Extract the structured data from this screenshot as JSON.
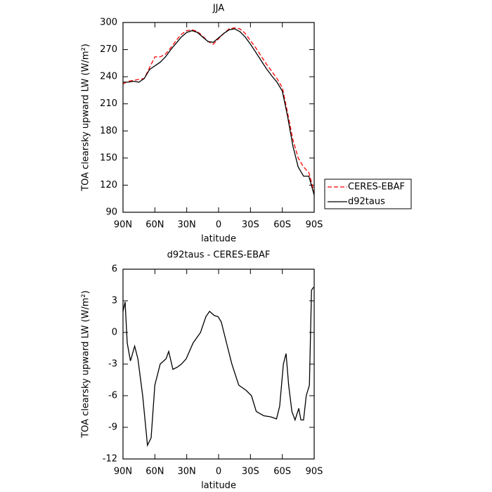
{
  "chart_data": [
    {
      "type": "line",
      "title": "JJA",
      "xlabel": "latitude",
      "ylabel": "TOA clearsky upward LW (W/m²)",
      "xlim": [
        90,
        -90
      ],
      "ylim": [
        90,
        300
      ],
      "xticks": [
        {
          "value": 90,
          "label": "90N"
        },
        {
          "value": 60,
          "label": "60N"
        },
        {
          "value": 30,
          "label": "30N"
        },
        0,
        {
          "value": -30,
          "label": "30S"
        },
        {
          "value": -60,
          "label": "60S"
        },
        {
          "value": -90,
          "label": "90S"
        }
      ],
      "yticks": [
        90,
        120,
        150,
        180,
        210,
        240,
        270,
        300
      ],
      "legend": "right",
      "x": [
        90,
        85,
        80,
        75,
        70,
        65,
        60,
        55,
        50,
        45,
        40,
        35,
        30,
        25,
        20,
        15,
        10,
        5,
        0,
        -5,
        -10,
        -15,
        -20,
        -25,
        -30,
        -35,
        -40,
        -45,
        -50,
        -55,
        -60,
        -65,
        -70,
        -75,
        -80,
        -85,
        -90
      ],
      "series": [
        {
          "name": "CERES-EBAF",
          "color": "#ff0000",
          "linestyle": "dashed",
          "values": [
            232,
            235,
            236,
            237,
            238,
            250,
            262,
            262,
            265,
            272,
            280,
            287,
            291,
            292,
            290,
            285,
            279,
            276,
            282,
            288,
            293,
            294,
            293,
            288,
            280,
            272,
            263,
            254,
            246,
            238,
            228,
            200,
            170,
            150,
            140,
            134,
            112
          ]
        },
        {
          "name": "d92taus",
          "color": "#000000",
          "linestyle": "solid",
          "values": [
            234,
            234,
            235,
            234,
            238,
            248,
            252,
            256,
            262,
            270,
            277,
            284,
            289,
            291,
            289,
            284,
            279,
            278,
            283,
            288,
            292,
            293,
            290,
            284,
            276,
            267,
            258,
            249,
            241,
            234,
            224,
            196,
            163,
            140,
            130,
            130,
            109
          ]
        }
      ]
    },
    {
      "type": "line",
      "title": "d92taus - CERES-EBAF",
      "xlabel": "latitude",
      "ylabel": "TOA clearsky upward LW (W/m²)",
      "xlim": [
        90,
        -90
      ],
      "ylim": [
        -12,
        6
      ],
      "xticks": [
        {
          "value": 90,
          "label": "90N"
        },
        {
          "value": 60,
          "label": "60N"
        },
        {
          "value": 30,
          "label": "30N"
        },
        0,
        {
          "value": -30,
          "label": "30S"
        },
        {
          "value": -60,
          "label": "60S"
        },
        {
          "value": -90,
          "label": "90S"
        }
      ],
      "yticks": [
        -12,
        -9,
        -6,
        -3,
        0,
        3,
        6
      ],
      "x": [
        90,
        88,
        86,
        83,
        79,
        76,
        71.5,
        67,
        63.5,
        60,
        55,
        49.5,
        47,
        43,
        39,
        35,
        30.5,
        24,
        17,
        12,
        8.5,
        4,
        0.5,
        -2.5,
        -7.5,
        -12.5,
        -19,
        -26,
        -31,
        -35.5,
        -42.5,
        -49,
        -54.5,
        -57.5,
        -61,
        -63.5,
        -66,
        -69,
        -72,
        -75.5,
        -77.5,
        -80,
        -82.5,
        -85.5,
        -87.5,
        -89.5
      ],
      "series": [
        {
          "name": "d92taus - CERES-EBAF",
          "color": "#000000",
          "linestyle": "solid",
          "values": [
            2,
            2.9,
            -1,
            -2.7,
            -1.3,
            -2.5,
            -6,
            -10.7,
            -10,
            -5,
            -3,
            -2.5,
            -1.8,
            -3.5,
            -3.3,
            -3,
            -2.5,
            -1,
            0,
            1.5,
            2,
            1.6,
            1.5,
            1,
            -1,
            -3,
            -5,
            -5.5,
            -6,
            -7.5,
            -7.9,
            -8,
            -8.2,
            -7,
            -3,
            -2,
            -5,
            -7.5,
            -8.3,
            -7.2,
            -8.3,
            -8.3,
            -6,
            -5,
            4,
            4.3
          ]
        }
      ]
    }
  ]
}
